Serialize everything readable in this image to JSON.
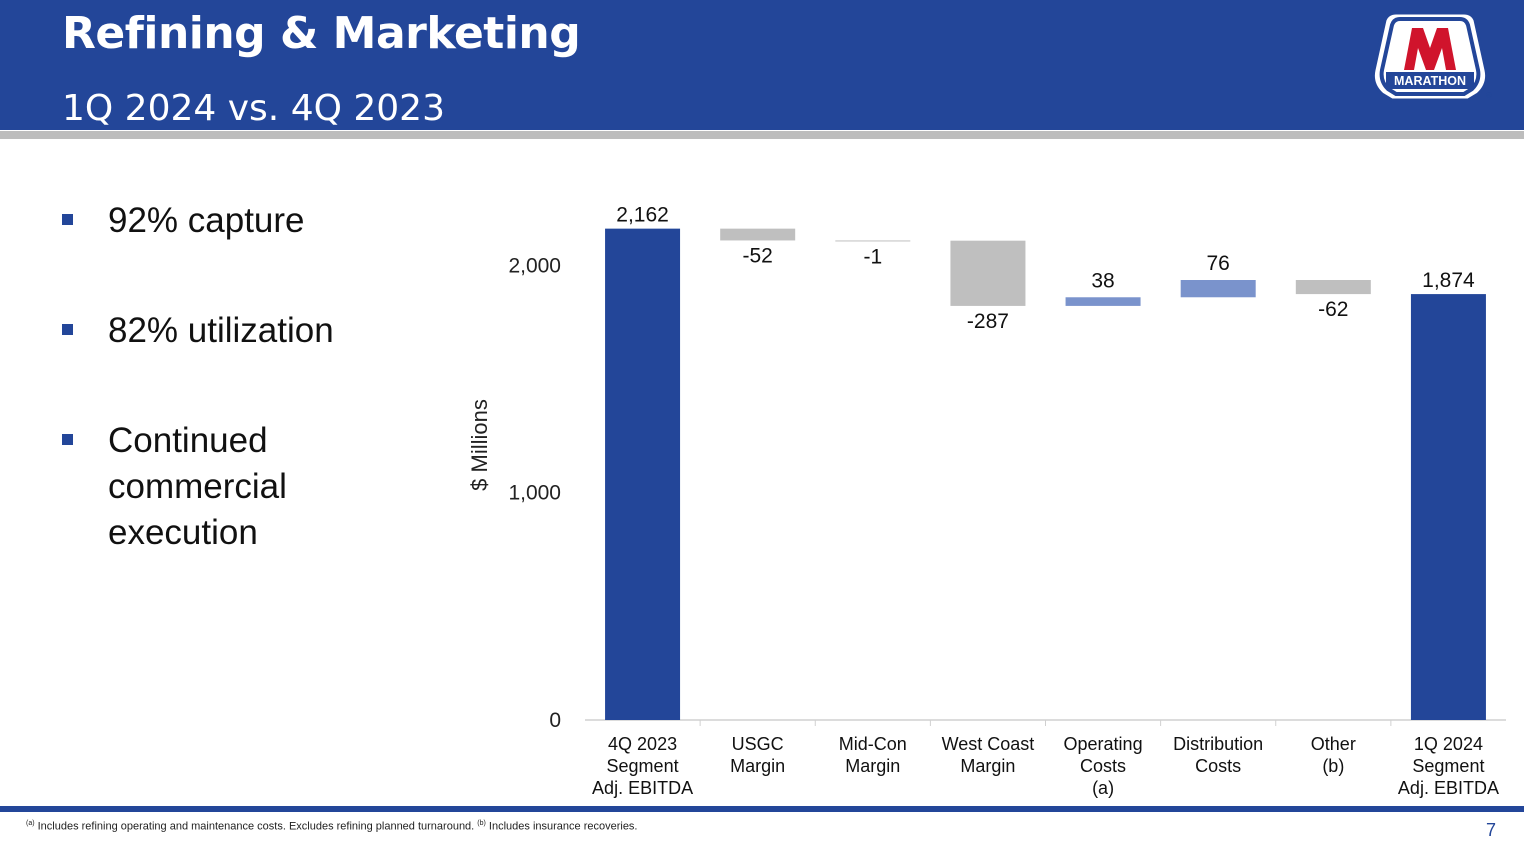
{
  "header": {
    "title": "Refining & Marketing",
    "subtitle": "1Q 2024 vs. 4Q 2023",
    "logo_text": "MARATHON",
    "logo_registered": "®"
  },
  "bullets": [
    "92% capture",
    "82% utilization",
    "Continued commercial execution"
  ],
  "colors": {
    "brand_blue": "#234699",
    "increase": "#7a93cc",
    "decrease": "#bfbfbf",
    "logo_red": "#d0142c"
  },
  "chart_data": {
    "type": "bar",
    "subtype": "waterfall",
    "ylabel": "$ Millions",
    "ylim": [
      0,
      2200
    ],
    "yticks": [
      0,
      1000,
      2000
    ],
    "ytick_labels": [
      "0",
      "1,000",
      "2,000"
    ],
    "categories": [
      [
        "4Q 2023",
        "Segment",
        "Adj. EBITDA"
      ],
      [
        "USGC",
        "Margin"
      ],
      [
        "Mid-Con",
        "Margin"
      ],
      [
        "West Coast",
        "Margin"
      ],
      [
        "Operating",
        "Costs",
        "(a)"
      ],
      [
        "Distribution",
        "Costs"
      ],
      [
        "Other",
        "(b)"
      ],
      [
        "1Q 2024",
        "Segment",
        "Adj. EBITDA"
      ]
    ],
    "values": [
      2162,
      -52,
      -1,
      -287,
      38,
      76,
      -62,
      1874
    ],
    "labels": [
      "2,162",
      "-52",
      "-1",
      "-287",
      "38",
      "76",
      "-62",
      "1,874"
    ],
    "bar_kinds": [
      "total",
      "delta",
      "delta",
      "delta",
      "delta",
      "delta",
      "delta",
      "total"
    ],
    "grid": false,
    "legend": "none"
  },
  "footer": {
    "note_a_mark": "(a)",
    "note_a": " Includes refining operating and maintenance costs. Excludes refining planned turnaround. ",
    "note_b_mark": "(b)",
    "note_b": " Includes insurance recoveries.",
    "page_number": "7"
  }
}
